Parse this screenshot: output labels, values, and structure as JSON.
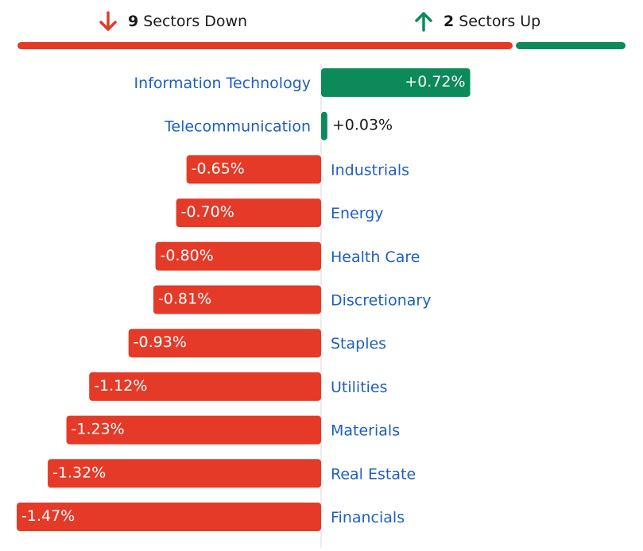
{
  "summary": {
    "down": {
      "count": "9",
      "label": "Sectors Down",
      "icon": "arrow-down-icon"
    },
    "up": {
      "count": "2",
      "label": "Sectors Up",
      "icon": "arrow-up-icon"
    }
  },
  "colors": {
    "negative": "#e53a28",
    "positive": "#0c8a5a",
    "label": "#1f5fbf",
    "text": "#1a1a1a",
    "axis": "#d9d9d9"
  },
  "chart_data": {
    "type": "bar",
    "orientation": "horizontal-diverging",
    "categories": [
      "Information Technology",
      "Telecommunication",
      "Industrials",
      "Energy",
      "Health Care",
      "Discretionary",
      "Staples",
      "Utilities",
      "Materials",
      "Real Estate",
      "Financials"
    ],
    "values": [
      0.72,
      0.03,
      -0.65,
      -0.7,
      -0.8,
      -0.81,
      -0.93,
      -1.12,
      -1.23,
      -1.32,
      -1.47
    ],
    "value_labels": [
      "+0.72%",
      "+0.03%",
      "-0.65%",
      "-0.70%",
      "-0.80%",
      "-0.81%",
      "-0.93%",
      "-1.12%",
      "-1.23%",
      "-1.32%",
      "-1.47%"
    ]
  }
}
